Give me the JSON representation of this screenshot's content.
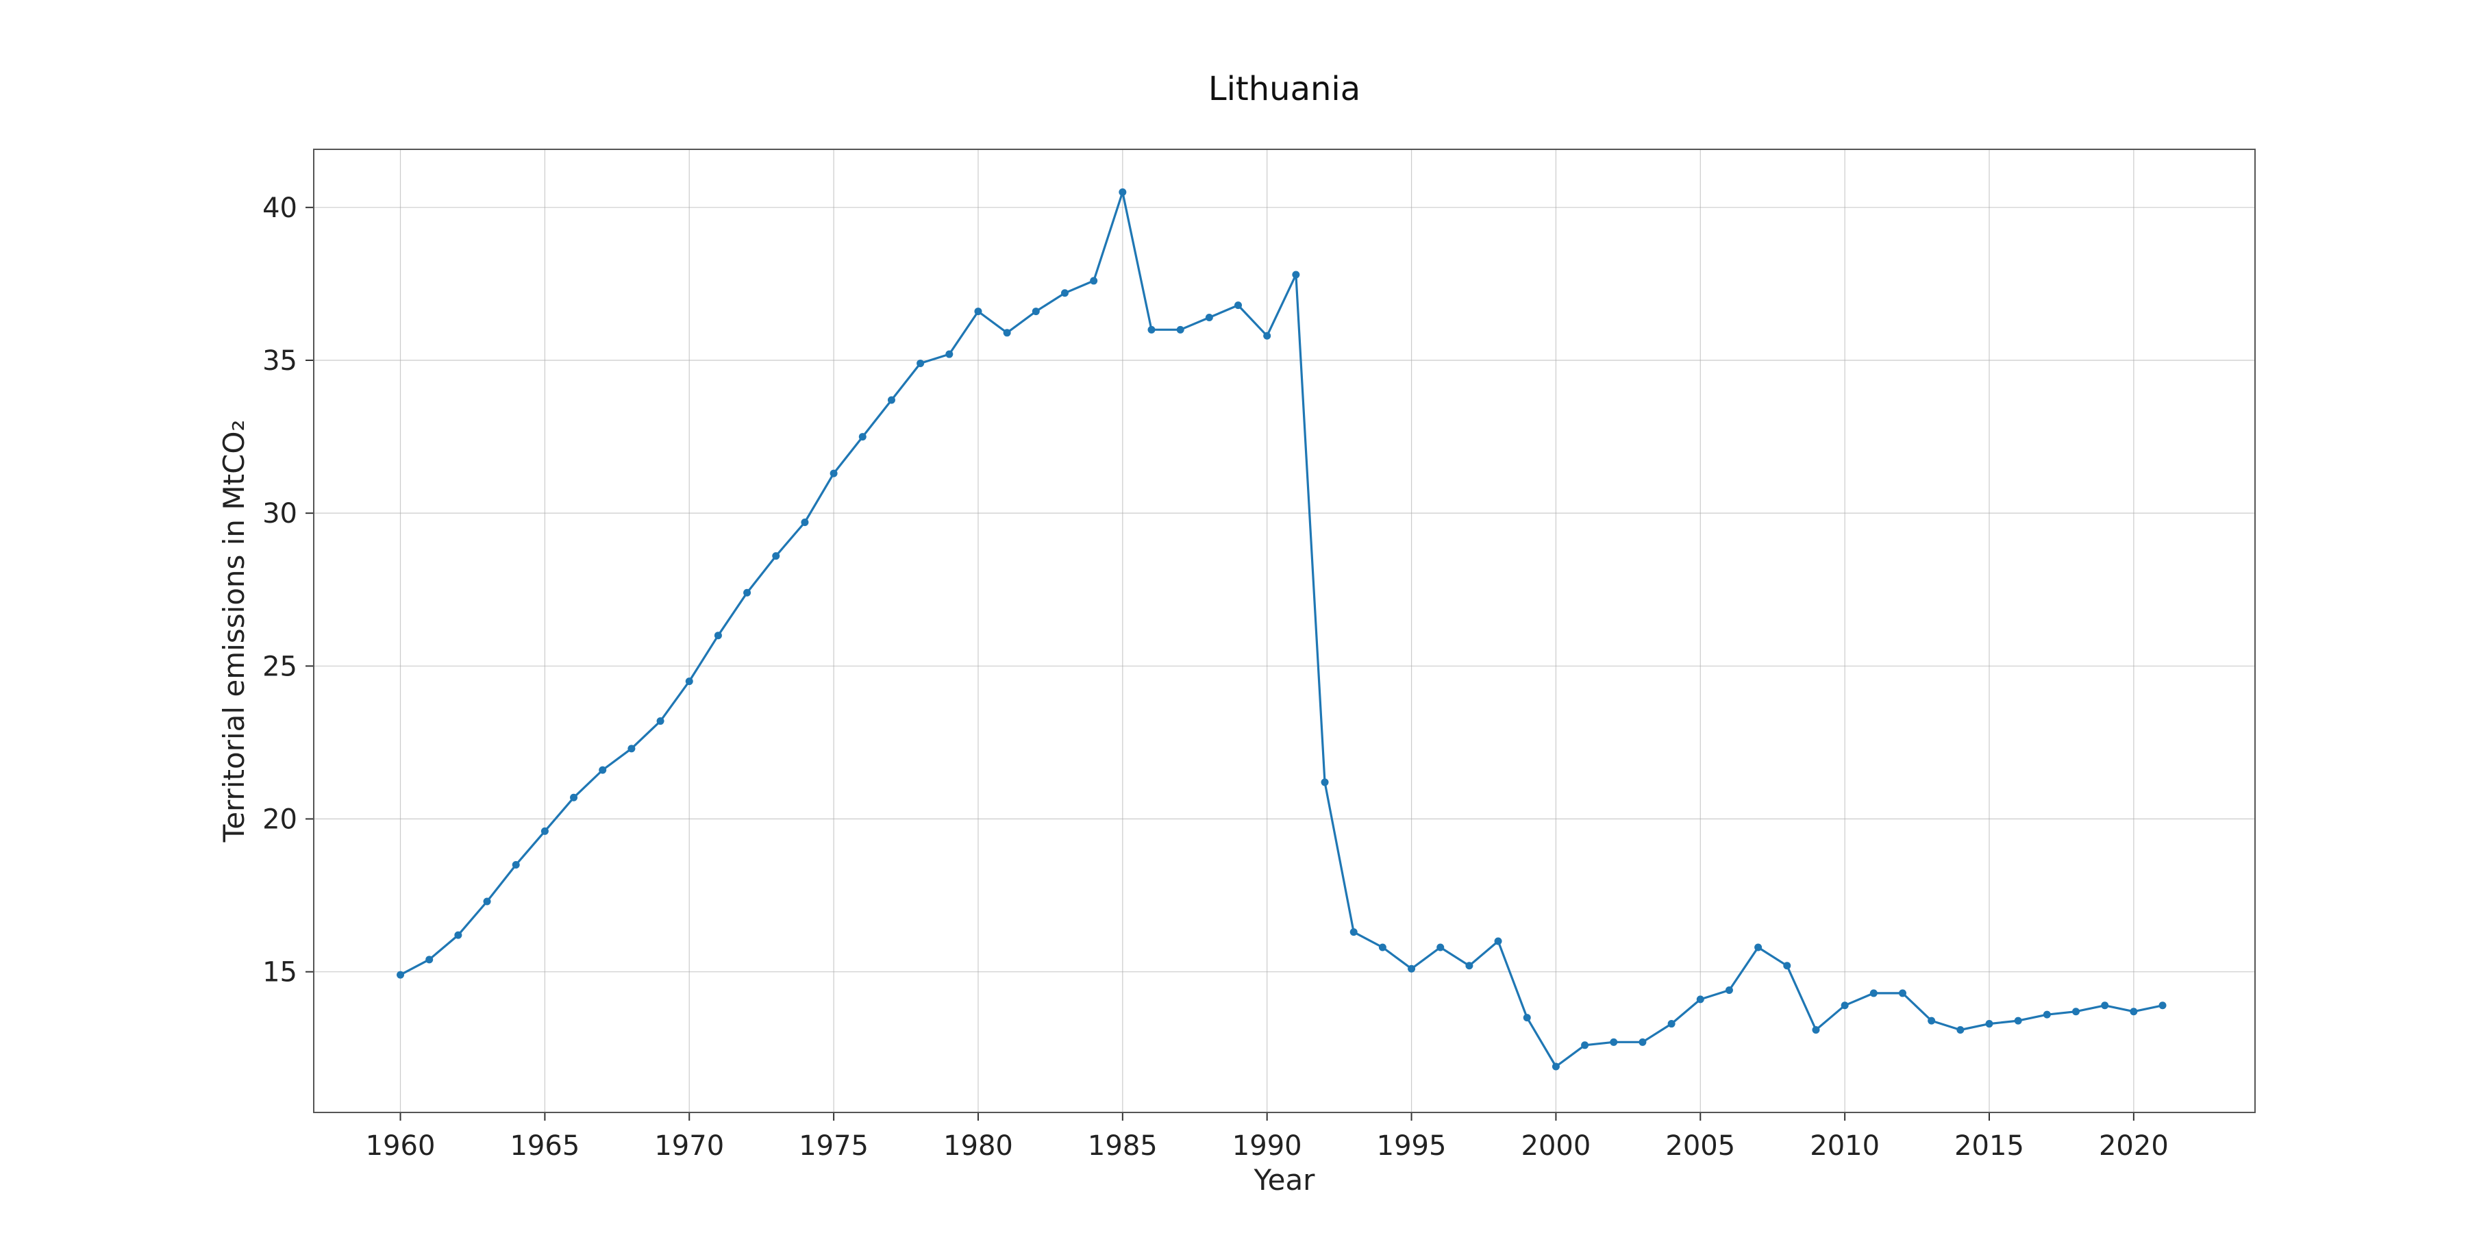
{
  "colors": {
    "series": "#1f77b4",
    "background": "#ffffff"
  },
  "chart_data": {
    "type": "line",
    "title": "Lithuania",
    "xlabel": "Year",
    "ylabel": "Territorial emissions in MtCO₂",
    "xlim": [
      1957,
      2024.2
    ],
    "ylim": [
      10.4,
      41.9
    ],
    "xticks": [
      1960,
      1965,
      1970,
      1975,
      1980,
      1985,
      1990,
      1995,
      2000,
      2005,
      2010,
      2015,
      2020
    ],
    "yticks": [
      15,
      20,
      25,
      30,
      35,
      40
    ],
    "grid": true,
    "marker": "circle",
    "x": [
      1960,
      1961,
      1962,
      1963,
      1964,
      1965,
      1966,
      1967,
      1968,
      1969,
      1970,
      1971,
      1972,
      1973,
      1974,
      1975,
      1976,
      1977,
      1978,
      1979,
      1980,
      1981,
      1982,
      1983,
      1984,
      1985,
      1986,
      1987,
      1988,
      1989,
      1990,
      1991,
      1992,
      1993,
      1994,
      1995,
      1996,
      1997,
      1998,
      1999,
      2000,
      2001,
      2002,
      2003,
      2004,
      2005,
      2006,
      2007,
      2008,
      2009,
      2010,
      2011,
      2012,
      2013,
      2014,
      2015,
      2016,
      2017,
      2018,
      2019,
      2020,
      2021
    ],
    "series": [
      {
        "values": [
          14.9,
          15.4,
          16.2,
          17.3,
          18.5,
          19.6,
          20.7,
          21.6,
          22.3,
          23.2,
          24.5,
          26.0,
          27.4,
          28.6,
          29.7,
          31.3,
          32.5,
          33.7,
          34.9,
          35.2,
          36.6,
          35.9,
          36.6,
          37.2,
          37.6,
          40.5,
          36.0,
          36.0,
          36.4,
          36.8,
          35.8,
          37.8,
          21.2,
          16.3,
          15.8,
          15.1,
          15.8,
          15.2,
          16.0,
          13.5,
          11.9,
          12.6,
          12.7,
          12.7,
          13.3,
          14.1,
          14.4,
          15.8,
          15.2,
          13.1,
          13.9,
          14.3,
          14.3,
          13.4,
          13.1,
          13.3,
          13.4,
          13.6,
          13.7,
          13.9,
          13.7,
          13.9
        ]
      }
    ]
  }
}
